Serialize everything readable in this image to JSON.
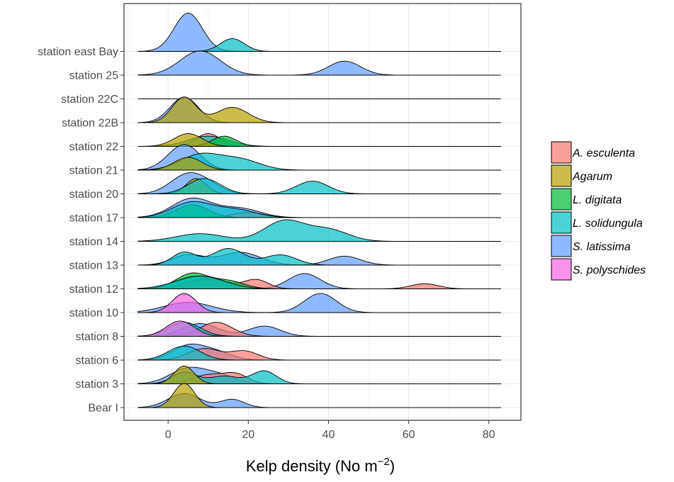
{
  "chart_data": {
    "type": "ridgeline",
    "xlabel": "Kelp density (No m",
    "xlabel_sup": "−2",
    "xlabel_close": ")",
    "xlim": [
      -11,
      88
    ],
    "xticks": [
      0,
      20,
      40,
      60,
      80
    ],
    "xtick_labels": [
      "0",
      "20",
      "40",
      "60",
      "80"
    ],
    "grid": true,
    "legend_position": "right",
    "baseline_start": -7.5,
    "baseline_end": 83,
    "categories": [
      "Bear I",
      "station 3",
      "station 6",
      "station 8",
      "station 10",
      "station 12",
      "station 13",
      "station 14",
      "station 17",
      "station 20",
      "station 21",
      "station 22",
      "station 22B",
      "station 22C",
      "station 25",
      "station east Bay"
    ],
    "species": [
      {
        "name": "A. esculenta",
        "color": "#F8766D"
      },
      {
        "name": "Agarum",
        "color": "#B79F00"
      },
      {
        "name": "L. digitata",
        "color": "#00BA38"
      },
      {
        "name": "L. solidungula",
        "color": "#00BFC4"
      },
      {
        "name": "S. latissima",
        "color": "#619CFF"
      },
      {
        "name": "S. polyschides",
        "color": "#F564E3"
      }
    ],
    "ridges": [
      {
        "station": "Bear I",
        "species": "S. latissima",
        "comps": [
          [
            4,
            4,
            0.55
          ],
          [
            16,
            3,
            0.32
          ]
        ]
      },
      {
        "station": "Bear I",
        "species": "Agarum",
        "comps": [
          [
            4,
            2.6,
            0.95
          ]
        ]
      },
      {
        "station": "station 3",
        "species": "S. latissima",
        "comps": [
          [
            5,
            4.5,
            0.6
          ],
          [
            13,
            4,
            0.3
          ]
        ]
      },
      {
        "station": "station 3",
        "species": "A. esculenta",
        "comps": [
          [
            10,
            4,
            0.35
          ],
          [
            17,
            3,
            0.35
          ]
        ]
      },
      {
        "station": "station 3",
        "species": "L. solidungula",
        "comps": [
          [
            4,
            3,
            0.45
          ],
          [
            14,
            4,
            0.3
          ],
          [
            24,
            3,
            0.5
          ]
        ]
      },
      {
        "station": "station 3",
        "species": "Agarum",
        "comps": [
          [
            4,
            2.5,
            0.7
          ]
        ]
      },
      {
        "station": "station 6",
        "species": "S. latissima",
        "comps": [
          [
            5,
            4,
            0.55
          ],
          [
            12,
            4,
            0.3
          ]
        ]
      },
      {
        "station": "station 6",
        "species": "A. esculenta",
        "comps": [
          [
            9,
            4,
            0.45
          ],
          [
            19,
            3.5,
            0.35
          ]
        ]
      },
      {
        "station": "station 6",
        "species": "L. solidungula",
        "comps": [
          [
            4,
            4,
            0.55
          ]
        ]
      },
      {
        "station": "station 8",
        "species": "S. latissima",
        "comps": [
          [
            8,
            4.5,
            0.5
          ],
          [
            24,
            4,
            0.4
          ]
        ]
      },
      {
        "station": "station 8",
        "species": "A. esculenta",
        "comps": [
          [
            12,
            4,
            0.55
          ]
        ]
      },
      {
        "station": "station 8",
        "species": "L. solidungula",
        "comps": [
          [
            4,
            4,
            0.55
          ]
        ]
      },
      {
        "station": "station 8",
        "species": "S. polyschides",
        "comps": [
          [
            3,
            3.5,
            0.6
          ]
        ]
      },
      {
        "station": "station 10",
        "species": "S. latissima",
        "comps": [
          [
            5,
            6,
            0.4
          ],
          [
            38,
            4,
            0.75
          ]
        ]
      },
      {
        "station": "station 10",
        "species": "S. polyschides",
        "comps": [
          [
            4,
            3,
            0.75
          ]
        ]
      },
      {
        "station": "station 12",
        "species": "S. latissima",
        "comps": [
          [
            7,
            5,
            0.5
          ],
          [
            34,
            4,
            0.6
          ]
        ]
      },
      {
        "station": "station 12",
        "species": "A. esculenta",
        "comps": [
          [
            10,
            5,
            0.4
          ],
          [
            22,
            3,
            0.35
          ],
          [
            64,
            3.5,
            0.2
          ]
        ]
      },
      {
        "station": "station 12",
        "species": "L. digitata",
        "comps": [
          [
            6,
            4,
            0.6
          ],
          [
            15,
            4,
            0.3
          ]
        ]
      },
      {
        "station": "station 12",
        "species": "L. solidungula",
        "comps": [
          [
            8,
            6,
            0.5
          ]
        ]
      },
      {
        "station": "station 13",
        "species": "S. latissima",
        "comps": [
          [
            5,
            4,
            0.4
          ],
          [
            18,
            5,
            0.5
          ],
          [
            44,
            4,
            0.35
          ]
        ]
      },
      {
        "station": "station 13",
        "species": "L. solidungula",
        "comps": [
          [
            4,
            3,
            0.5
          ],
          [
            15,
            4,
            0.65
          ],
          [
            28,
            4,
            0.4
          ]
        ]
      },
      {
        "station": "station 14",
        "species": "L. solidungula",
        "comps": [
          [
            8,
            6,
            0.3
          ],
          [
            29,
            5,
            0.8
          ],
          [
            40,
            5,
            0.45
          ]
        ]
      },
      {
        "station": "station 17",
        "species": "S. latissima",
        "comps": [
          [
            6,
            5,
            0.75
          ],
          [
            18,
            5,
            0.35
          ]
        ]
      },
      {
        "station": "station 17",
        "species": "A. esculenta",
        "comps": [
          [
            20,
            4,
            0.2
          ]
        ]
      },
      {
        "station": "station 17",
        "species": "L. digitata",
        "comps": [
          [
            6,
            4,
            0.5
          ]
        ]
      },
      {
        "station": "station 17",
        "species": "L. solidungula",
        "comps": [
          [
            6,
            5,
            0.6
          ],
          [
            17,
            5,
            0.3
          ]
        ]
      },
      {
        "station": "station 20",
        "species": "S. latissima",
        "comps": [
          [
            4,
            4,
            0.6
          ],
          [
            9,
            4,
            0.4
          ]
        ]
      },
      {
        "station": "station 20",
        "species": "Agarum",
        "comps": [
          [
            7,
            2.5,
            0.6
          ]
        ]
      },
      {
        "station": "station 20",
        "species": "L. solidungula",
        "comps": [
          [
            9,
            4,
            0.6
          ],
          [
            36,
            4,
            0.5
          ]
        ]
      },
      {
        "station": "station 21",
        "species": "S. latissima",
        "comps": [
          [
            4,
            4,
            1.0
          ]
        ]
      },
      {
        "station": "station 21",
        "species": "L. solidungula",
        "comps": [
          [
            8,
            5,
            0.6
          ],
          [
            18,
            5,
            0.4
          ]
        ]
      },
      {
        "station": "station 21",
        "species": "Agarum",
        "comps": [
          [
            5,
            3.5,
            0.5
          ]
        ]
      },
      {
        "station": "station 22",
        "species": "A. esculenta",
        "comps": [
          [
            10,
            3,
            0.5
          ]
        ]
      },
      {
        "station": "station 22",
        "species": "L. solidungula",
        "comps": [
          [
            10,
            5,
            0.4
          ]
        ]
      },
      {
        "station": "station 22",
        "species": "L. digitata",
        "comps": [
          [
            14,
            3,
            0.4
          ]
        ]
      },
      {
        "station": "station 22",
        "species": "Agarum",
        "comps": [
          [
            5,
            3.5,
            0.5
          ]
        ]
      },
      {
        "station": "station 22B",
        "species": "S. latissima",
        "comps": [
          [
            4,
            3.5,
            1.0
          ]
        ]
      },
      {
        "station": "station 22B",
        "species": "Agarum",
        "comps": [
          [
            4,
            3,
            1.0
          ],
          [
            16,
            4,
            0.6
          ]
        ]
      },
      {
        "station": "station east Bay",
        "species": "S. latissima",
        "comps": [
          [
            5,
            3.5,
            1.5
          ]
        ]
      },
      {
        "station": "station east Bay",
        "species": "L. solidungula",
        "comps": [
          [
            16,
            3,
            0.5
          ]
        ]
      },
      {
        "station": "station 25",
        "species": "S. latissima",
        "comps": [
          [
            8,
            5,
            0.95
          ],
          [
            44,
            4,
            0.55
          ]
        ]
      }
    ]
  }
}
